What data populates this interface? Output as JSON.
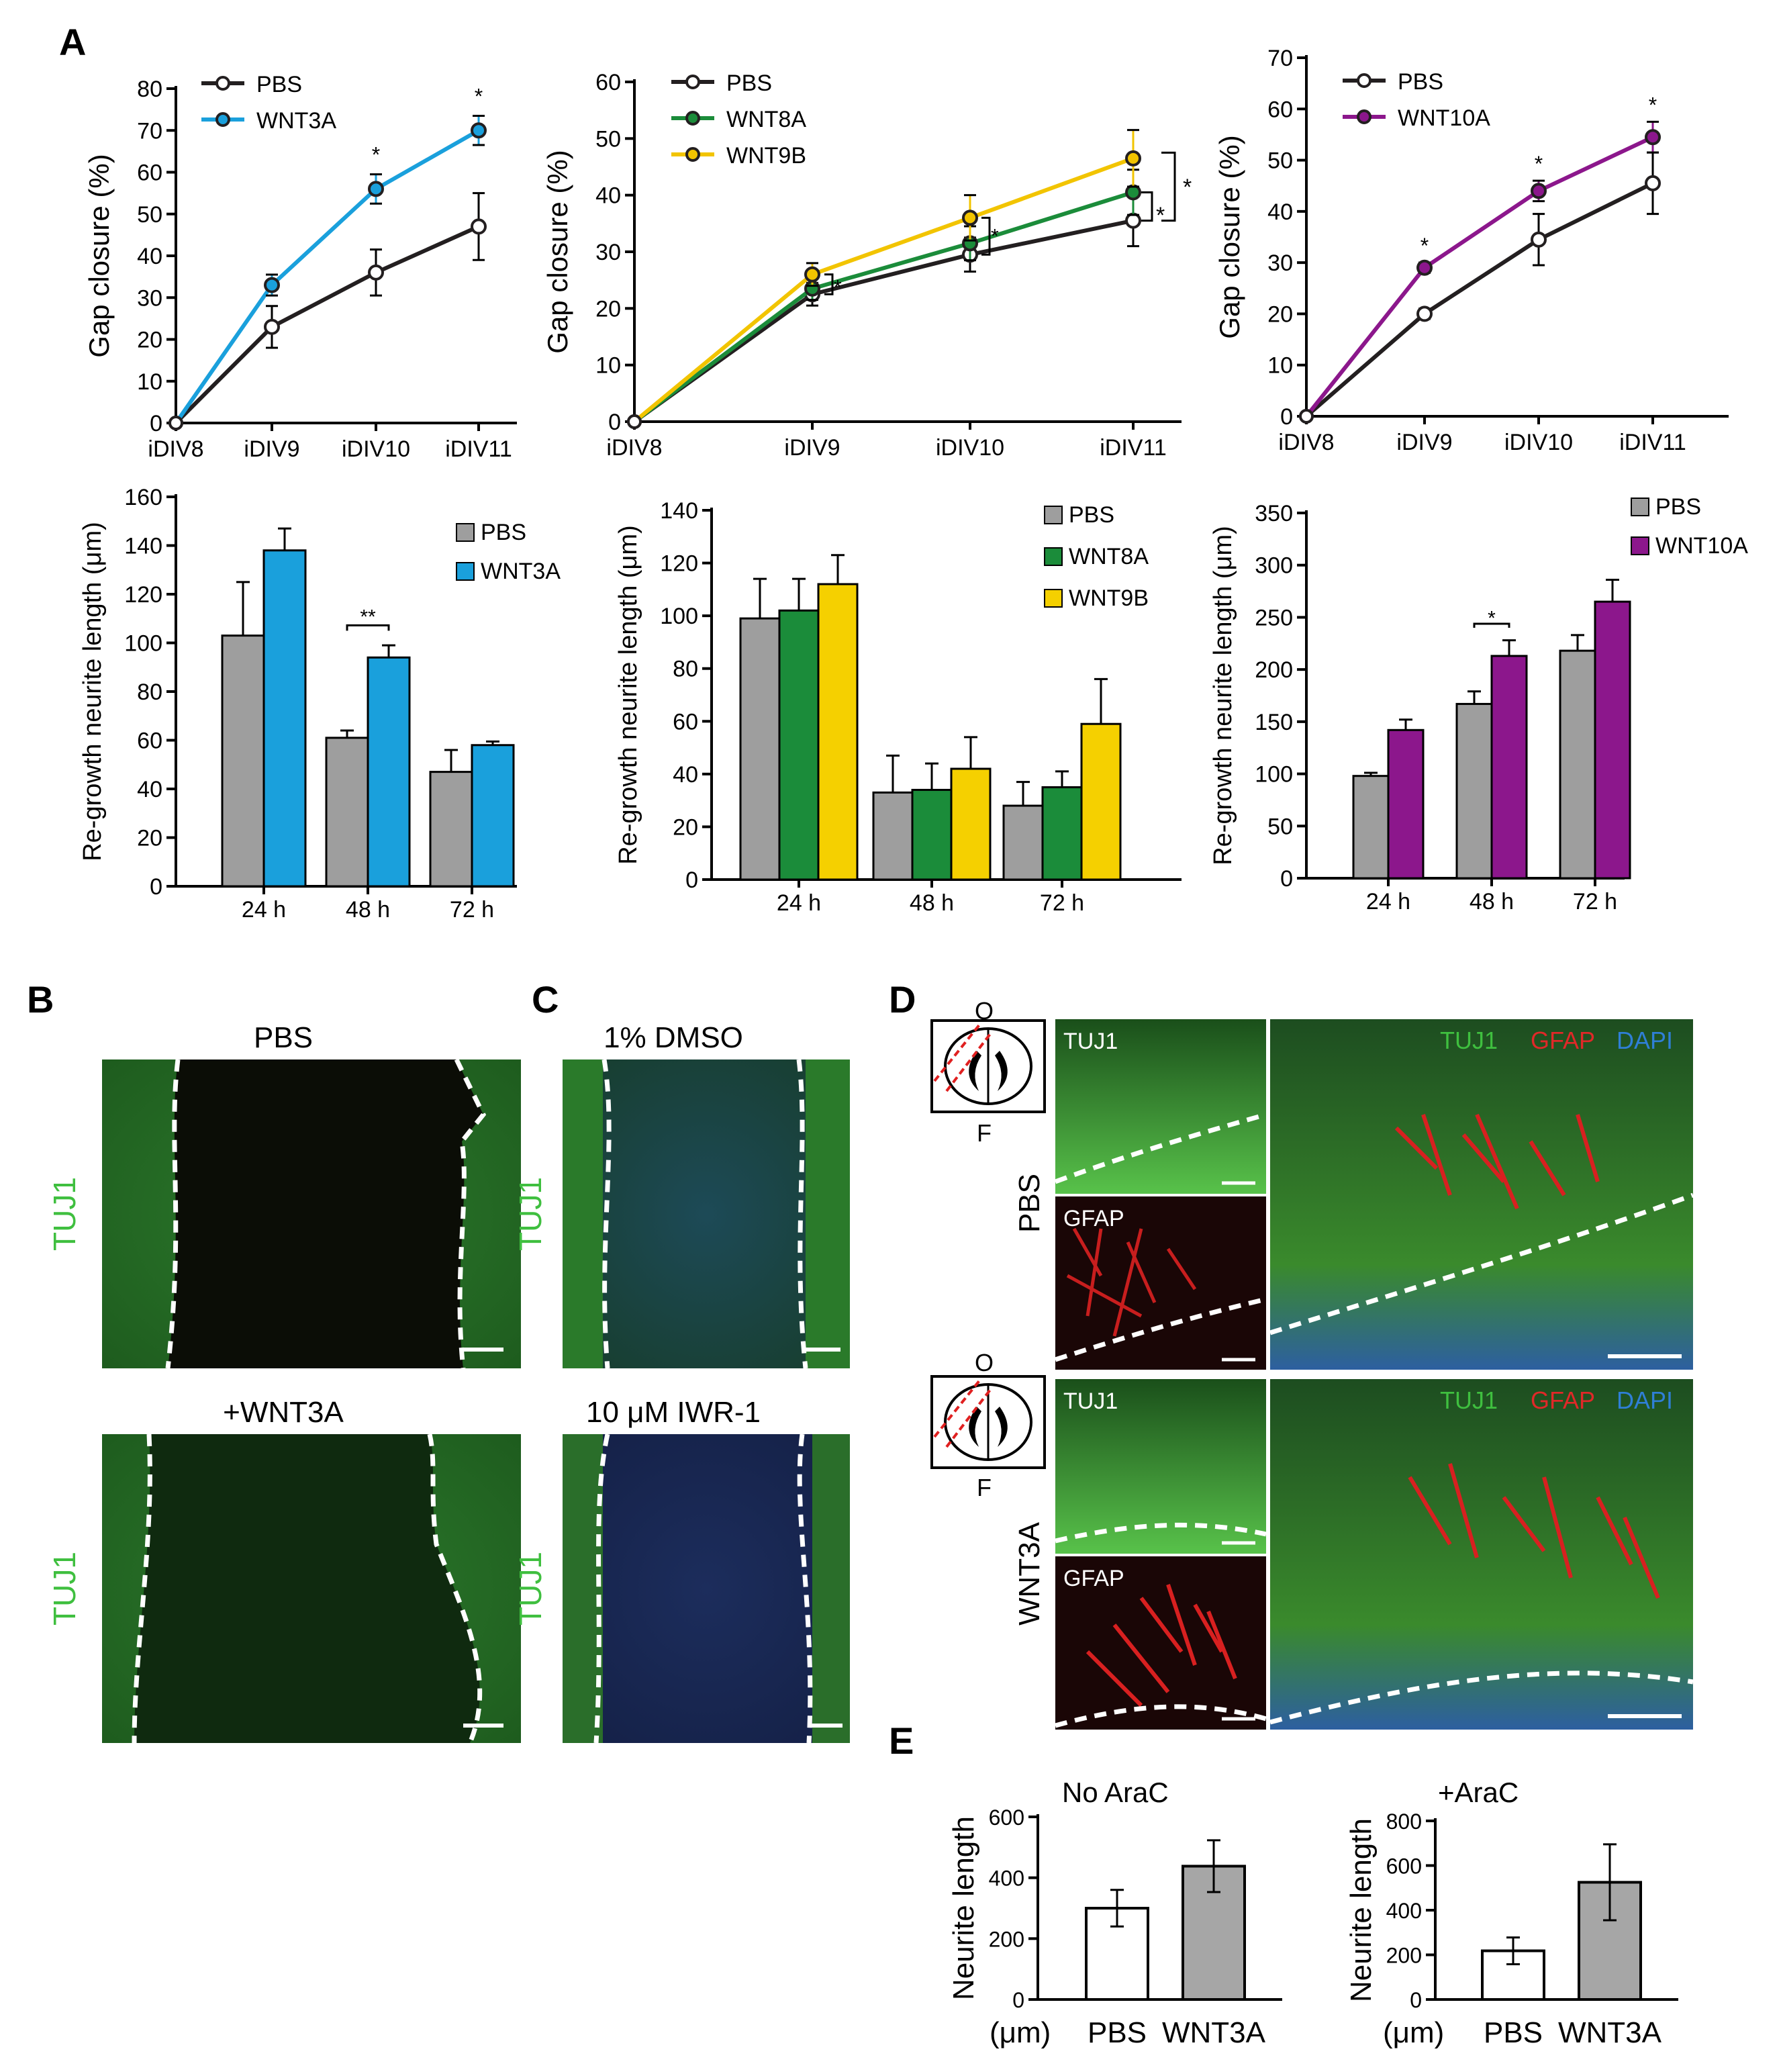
{
  "panel_letters": {
    "A": "A",
    "B": "B",
    "C": "C",
    "D": "D",
    "E": "E"
  },
  "colors": {
    "pbs_line": "#231f20",
    "pbs_bar": "#9e9e9e",
    "wnt3a": "#1aa0dc",
    "wnt8a": "#1b8c3a",
    "wnt9b": "#f5d000",
    "wnt9b_line": "#f2c400",
    "wnt10a": "#8c178c",
    "white_bar": "#ffffff",
    "e_grey": "#a6a6a6",
    "tuj1_green": "#3fbf3f",
    "gfap_red": "#e02828",
    "dapi_blue": "#2f7fd6"
  },
  "chart_data": [
    {
      "id": "A1",
      "type": "line",
      "categories": [
        "iDIV8",
        "iDIV9",
        "iDIV10",
        "iDIV11"
      ],
      "series": [
        {
          "name": "PBS",
          "values": [
            0,
            23,
            36,
            47
          ],
          "errors": [
            0,
            5,
            5.5,
            8
          ]
        },
        {
          "name": "WNT3A",
          "values": [
            0,
            33,
            56,
            70
          ],
          "errors": [
            0,
            2.5,
            3.5,
            3.5
          ]
        }
      ],
      "ylabel": "Gap closure (%)",
      "yticks": [
        0,
        10,
        20,
        30,
        40,
        50,
        60,
        70,
        80
      ],
      "ylim": [
        0,
        80
      ],
      "annotations": [
        {
          "text": "*",
          "category": "iDIV10"
        },
        {
          "text": "*",
          "category": "iDIV11"
        }
      ]
    },
    {
      "id": "A2",
      "type": "line",
      "categories": [
        "iDIV8",
        "iDIV9",
        "iDIV10",
        "iDIV11"
      ],
      "series": [
        {
          "name": "PBS",
          "values": [
            0,
            22.5,
            29.5,
            35.5
          ],
          "errors": [
            0,
            2,
            3,
            4.5
          ]
        },
        {
          "name": "WNT8A",
          "values": [
            0,
            23.5,
            31.5,
            40.5
          ],
          "errors": [
            0,
            2,
            3,
            4
          ]
        },
        {
          "name": "WNT9B",
          "values": [
            0,
            26,
            36,
            46.5
          ],
          "errors": [
            0,
            2,
            4,
            5
          ]
        }
      ],
      "ylabel": "Gap closure (%)",
      "yticks": [
        0,
        10,
        20,
        30,
        40,
        50,
        60
      ],
      "ylim": [
        0,
        60
      ],
      "annotations": [
        {
          "text": "*",
          "label": "iDIV9 bracket"
        },
        {
          "text": "*",
          "label": "iDIV10 bracket"
        },
        {
          "text": "*",
          "label": "WNT8A vs PBS"
        },
        {
          "text": "*",
          "label": "WNT9B vs PBS"
        }
      ]
    },
    {
      "id": "A3",
      "type": "line",
      "categories": [
        "iDIV8",
        "iDIV9",
        "iDIV10",
        "iDIV11"
      ],
      "series": [
        {
          "name": "PBS",
          "values": [
            0,
            20,
            34.5,
            45.5
          ],
          "errors": [
            0,
            1,
            5,
            6
          ]
        },
        {
          "name": "WNT10A",
          "values": [
            0,
            29,
            44,
            54.5
          ],
          "errors": [
            0,
            1,
            2,
            3
          ]
        }
      ],
      "ylabel": "Gap closure (%)",
      "yticks": [
        0,
        10,
        20,
        30,
        40,
        50,
        60,
        70
      ],
      "ylim": [
        0,
        70
      ],
      "annotations": [
        {
          "text": "*",
          "category": "iDIV9"
        },
        {
          "text": "*",
          "category": "iDIV10"
        },
        {
          "text": "*",
          "category": "iDIV11"
        }
      ]
    },
    {
      "id": "A4",
      "type": "bar",
      "categories": [
        "24 h",
        "48 h",
        "72 h"
      ],
      "series": [
        {
          "name": "PBS",
          "values": [
            103,
            61,
            47
          ],
          "errors": [
            22,
            3,
            9
          ]
        },
        {
          "name": "WNT3A",
          "values": [
            138,
            94,
            58
          ],
          "errors": [
            9,
            5,
            1.5
          ]
        }
      ],
      "ylabel": "Re-growth neurite length (μm)",
      "yticks": [
        0,
        20,
        40,
        60,
        80,
        100,
        120,
        140,
        160
      ],
      "ylim": [
        0,
        160
      ],
      "annotations": [
        {
          "text": "**",
          "category": "48 h"
        }
      ]
    },
    {
      "id": "A5",
      "type": "bar",
      "categories": [
        "24 h",
        "48 h",
        "72 h"
      ],
      "series": [
        {
          "name": "PBS",
          "values": [
            99,
            33,
            28
          ],
          "errors": [
            15,
            14,
            9
          ]
        },
        {
          "name": "WNT8A",
          "values": [
            102,
            34,
            35
          ],
          "errors": [
            12,
            10,
            6
          ]
        },
        {
          "name": "WNT9B",
          "values": [
            112,
            42,
            59
          ],
          "errors": [
            11,
            12,
            17
          ]
        }
      ],
      "ylabel": "Re-growth neurite length (μm)",
      "yticks": [
        0,
        20,
        40,
        60,
        80,
        100,
        120,
        140
      ],
      "ylim": [
        0,
        140
      ],
      "annotations": []
    },
    {
      "id": "A6",
      "type": "bar",
      "categories": [
        "24 h",
        "48 h",
        "72 h"
      ],
      "series": [
        {
          "name": "PBS",
          "values": [
            98,
            167,
            218
          ],
          "errors": [
            3,
            12,
            15
          ]
        },
        {
          "name": "WNT10A",
          "values": [
            142,
            213,
            265
          ],
          "errors": [
            10,
            15,
            21
          ]
        }
      ],
      "ylabel": "Re-growth neurite length (μm)",
      "yticks": [
        0,
        50,
        100,
        150,
        200,
        250,
        300,
        350
      ],
      "ylim": [
        0,
        350
      ],
      "annotations": [
        {
          "text": "*",
          "category": "48 h"
        }
      ]
    },
    {
      "id": "E1",
      "type": "bar",
      "title": "No AraC",
      "categories": [
        "PBS",
        "WNT3A"
      ],
      "values": [
        300,
        438
      ],
      "errors": [
        60,
        85
      ],
      "ylabel": "Neurite length",
      "unit_label": "(μm)",
      "yticks": [
        0,
        200,
        400,
        600
      ],
      "ylim": [
        0,
        600
      ]
    },
    {
      "id": "E2",
      "type": "bar",
      "title": "+AraC",
      "categories": [
        "PBS",
        "WNT3A"
      ],
      "values": [
        218,
        525
      ],
      "errors": [
        60,
        170
      ],
      "ylabel": "Neurite length",
      "unit_label": "(μm)",
      "yticks": [
        0,
        200,
        400,
        600,
        800
      ],
      "ylim": [
        0,
        800
      ]
    }
  ],
  "panelB": {
    "top_title": "PBS",
    "bottom_title": "+WNT3A",
    "side_label": "TUJ1"
  },
  "panelC": {
    "top_title": "1% DMSO",
    "bottom_title": "10 μM IWR-1",
    "side_label": "TUJ1"
  },
  "panelD": {
    "schematic_top_label": "O",
    "schematic_bottom_label": "F",
    "row_pbs": "PBS",
    "row_wnt3a": "WNT3A",
    "tuj1": "TUJ1",
    "gfap": "GFAP",
    "dapi": "DAPI"
  }
}
